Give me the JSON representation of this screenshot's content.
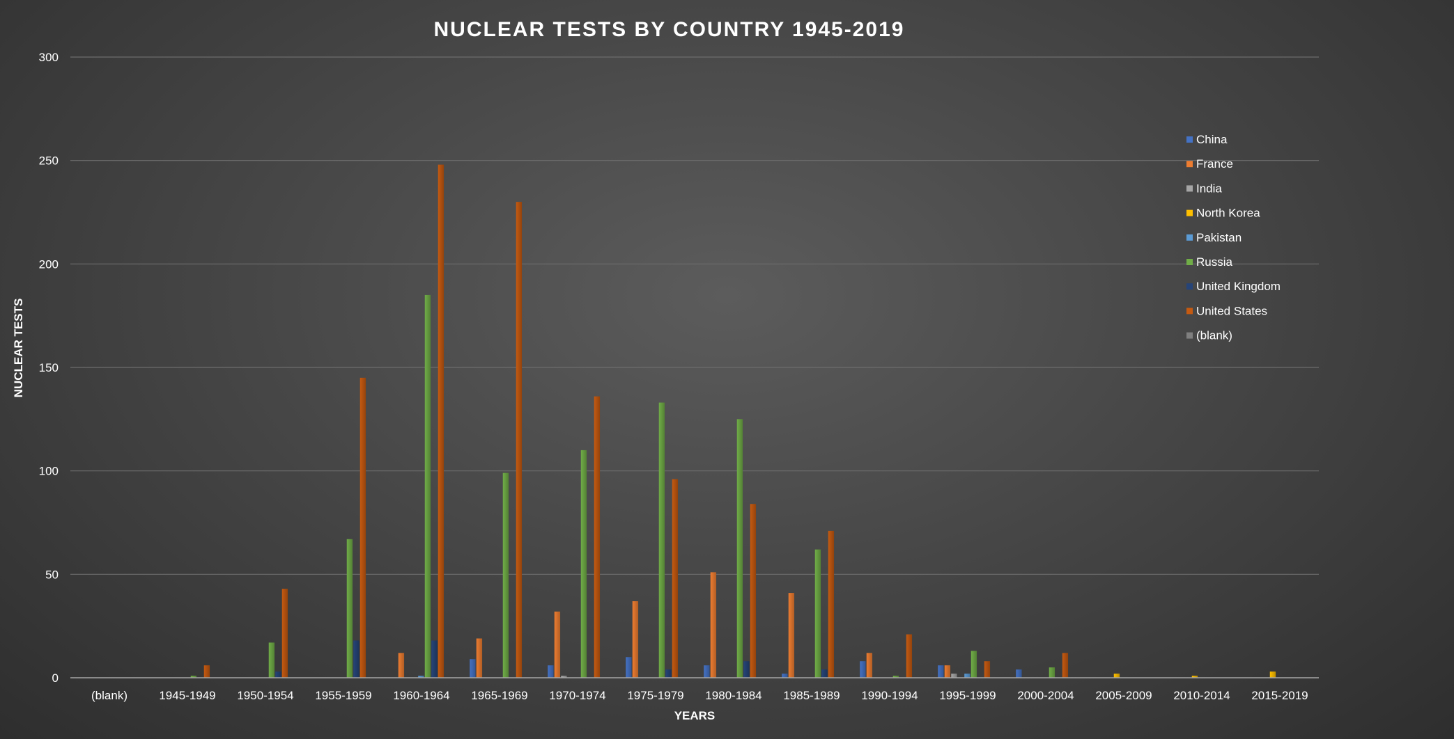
{
  "chart_data": {
    "type": "bar",
    "title": "NUCLEAR TESTS BY COUNTRY 1945-2019",
    "xlabel": "YEARS",
    "ylabel": "NUCLEAR TESTS",
    "ylim": [
      0,
      300
    ],
    "yticks": [
      0,
      50,
      100,
      150,
      200,
      250,
      300
    ],
    "grid": true,
    "legend_position": "right",
    "categories": [
      "(blank)",
      "1945-1949",
      "1950-1954",
      "1955-1959",
      "1960-1964",
      "1965-1969",
      "1970-1974",
      "1975-1979",
      "1980-1984",
      "1985-1989",
      "1990-1994",
      "1995-1999",
      "2000-2004",
      "2005-2009",
      "2010-2014",
      "2015-2019"
    ],
    "series": [
      {
        "name": "China",
        "color": "#4472c4",
        "values": [
          0,
          0,
          0,
          0,
          0,
          9,
          6,
          10,
          6,
          2,
          8,
          6,
          4,
          0,
          0,
          0
        ]
      },
      {
        "name": "France",
        "color": "#ed7d31",
        "values": [
          0,
          0,
          0,
          0,
          12,
          19,
          32,
          37,
          51,
          41,
          12,
          6,
          0,
          0,
          0,
          0
        ]
      },
      {
        "name": "India",
        "color": "#a5a5a5",
        "values": [
          0,
          0,
          0,
          0,
          0,
          0,
          1,
          0,
          0,
          0,
          0,
          2,
          0,
          0,
          0,
          0
        ]
      },
      {
        "name": "North Korea",
        "color": "#ffc000",
        "values": [
          0,
          0,
          0,
          0,
          0,
          0,
          0,
          0,
          0,
          0,
          0,
          0,
          0,
          2,
          1,
          3
        ]
      },
      {
        "name": "Pakistan",
        "color": "#5b9bd5",
        "values": [
          0,
          0,
          0,
          0,
          1,
          0,
          0,
          0,
          0,
          0,
          0,
          2,
          0,
          0,
          0,
          0
        ]
      },
      {
        "name": "Russia",
        "color": "#70ad47",
        "values": [
          0,
          1,
          17,
          67,
          185,
          99,
          110,
          133,
          125,
          62,
          1,
          13,
          5,
          0,
          0,
          0
        ]
      },
      {
        "name": "United Kingdom",
        "color": "#264478",
        "values": [
          0,
          0,
          3,
          18,
          18,
          0,
          0,
          4,
          8,
          4,
          0,
          0,
          0,
          0,
          0,
          0
        ]
      },
      {
        "name": "United States",
        "color": "#c55a11",
        "values": [
          0,
          6,
          43,
          145,
          248,
          230,
          136,
          96,
          84,
          71,
          21,
          8,
          12,
          0,
          0,
          0
        ]
      },
      {
        "name": "(blank)",
        "color": "#7f7f7f",
        "values": [
          0,
          0,
          0,
          0,
          0,
          0,
          0,
          0,
          0,
          0,
          0,
          0,
          0,
          0,
          0,
          0
        ]
      }
    ]
  }
}
